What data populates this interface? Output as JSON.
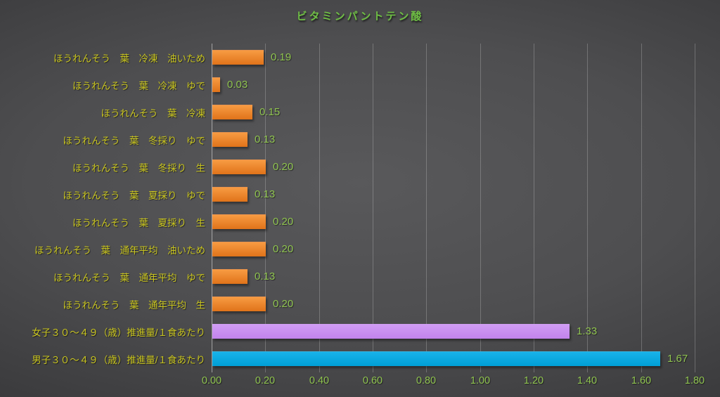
{
  "chart_data": {
    "type": "bar",
    "orientation": "horizontal",
    "title": "ビタミンパントテン酸",
    "grid": true,
    "xlim": [
      0,
      1.8
    ],
    "x_tick_step": 0.2,
    "x_ticks": [
      "0.00",
      "0.20",
      "0.40",
      "0.60",
      "0.80",
      "1.00",
      "1.20",
      "1.40",
      "1.60",
      "1.80"
    ],
    "rows": [
      {
        "label": "ほうれんそう　葉　冷凍　油いため",
        "value": 0.19,
        "value_label": "0.19",
        "color": "orange"
      },
      {
        "label": "ほうれんそう　葉　冷凍　ゆで",
        "value": 0.03,
        "value_label": "0.03",
        "color": "orange"
      },
      {
        "label": "ほうれんそう　葉　冷凍",
        "value": 0.15,
        "value_label": "0.15",
        "color": "orange"
      },
      {
        "label": "ほうれんそう　葉　冬採り　ゆで",
        "value": 0.13,
        "value_label": "0.13",
        "color": "orange"
      },
      {
        "label": "ほうれんそう　葉　冬採り　生",
        "value": 0.2,
        "value_label": "0.20",
        "color": "orange"
      },
      {
        "label": "ほうれんそう　葉　夏採り　ゆで",
        "value": 0.13,
        "value_label": "0.13",
        "color": "orange"
      },
      {
        "label": "ほうれんそう　葉　夏採り　生",
        "value": 0.2,
        "value_label": "0.20",
        "color": "orange"
      },
      {
        "label": "ほうれんそう　葉　通年平均　油いため",
        "value": 0.2,
        "value_label": "0.20",
        "color": "orange"
      },
      {
        "label": "ほうれんそう　葉　通年平均　ゆで",
        "value": 0.13,
        "value_label": "0.13",
        "color": "orange"
      },
      {
        "label": "ほうれんそう　葉　通年平均　生",
        "value": 0.2,
        "value_label": "0.20",
        "color": "orange"
      },
      {
        "label": "女子３０～４９（歳）推進量/１食あたり",
        "value": 1.33,
        "value_label": "1.33",
        "color": "purple"
      },
      {
        "label": "男子３０～４９（歳）推進量/１食あたり",
        "value": 1.67,
        "value_label": "1.67",
        "color": "blue"
      }
    ]
  },
  "colors": {
    "background_center": "#59595b",
    "background_edge": "#252527",
    "title_text": "#6fbf45",
    "category_text": "#c9c520",
    "value_text": "#8fc350",
    "tick_text": "#8fc350",
    "gridline": "rgba(220,220,220,0.28)",
    "palette": {
      "orange": [
        "#f79b42",
        "#e0731a"
      ],
      "purple": [
        "#d09cf4",
        "#c283ec"
      ],
      "blue": [
        "#18b2e9",
        "#009fd6"
      ]
    }
  }
}
